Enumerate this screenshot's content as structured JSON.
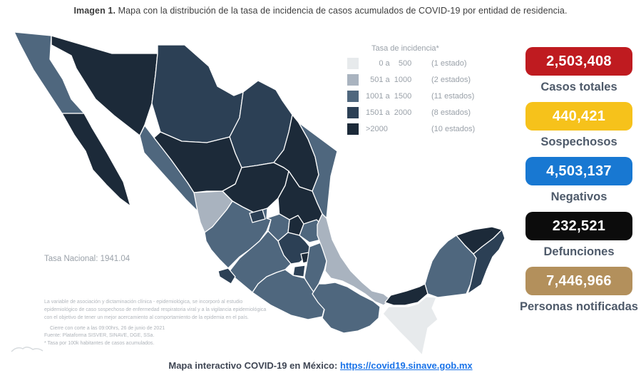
{
  "title": {
    "prefix": "Imagen 1.",
    "text": " Mapa con la distribución de la tasa de incidencia de casos acumulados de COVID-19 por entidad de residencia."
  },
  "legend": {
    "title": "Tasa de incidencia*",
    "items": [
      {
        "range": "      0 a    500",
        "count": "(1 estado)",
        "level": 1
      },
      {
        "range": "  501 a  1000",
        "count": "(2 estados)",
        "level": 2
      },
      {
        "range": "1001 a  1500",
        "count": "(11 estados)",
        "level": 3
      },
      {
        "range": "1501 a  2000",
        "count": "(8 estados)",
        "level": 4
      },
      {
        "range": ">2000",
        "count": "(10 estados)",
        "level": 5
      }
    ]
  },
  "palette": {
    "1": "#e7eaec",
    "2": "#a9b3bf",
    "3": "#4f677e",
    "4": "#2c4055",
    "5": "#1c2a39"
  },
  "map": {
    "tasa_nacional": "Tasa Nacional: 1941.04",
    "disclaimer": [
      "La variable de asociación y dictaminación clínica - epidemiológica, se incorporó al estudio",
      "epidemiológico de caso sospechoso de enfermedad respiratoria viral y a la vigilancia epidemiológica",
      "con el objetivo de tener un mejor acercamiento al comportamiento de la epidemia en el país."
    ],
    "source": [
      "Cierre con corte a las 09:00hrs, 26 de junio de 2021",
      "Fuente: Plataforma SISVER, SINAVE, DGE, SSa.",
      "* Tasa por 100k habitantes de casos acumulados."
    ],
    "states": [
      {
        "name": "Baja California",
        "level": 3
      },
      {
        "name": "Baja California Sur",
        "level": 5
      },
      {
        "name": "Sonora",
        "level": 5
      },
      {
        "name": "Chihuahua",
        "level": 4
      },
      {
        "name": "Coahuila",
        "level": 4
      },
      {
        "name": "Nuevo Leon",
        "level": 5
      },
      {
        "name": "Tamaulipas",
        "level": 3
      },
      {
        "name": "Sinaloa",
        "level": 3
      },
      {
        "name": "Durango",
        "level": 5
      },
      {
        "name": "Zacatecas",
        "level": 5
      },
      {
        "name": "San Luis Potosi",
        "level": 5
      },
      {
        "name": "Nayarit",
        "level": 2
      },
      {
        "name": "Jalisco",
        "level": 3
      },
      {
        "name": "Aguascalientes",
        "level": 4
      },
      {
        "name": "Guanajuato",
        "level": 3
      },
      {
        "name": "Queretaro",
        "level": 5
      },
      {
        "name": "Hidalgo",
        "level": 3
      },
      {
        "name": "Estado de Mexico",
        "level": 4
      },
      {
        "name": "Ciudad de Mexico",
        "level": 5
      },
      {
        "name": "Tlaxcala",
        "level": 4
      },
      {
        "name": "Morelos",
        "level": 4
      },
      {
        "name": "Puebla",
        "level": 3
      },
      {
        "name": "Michoacan",
        "level": 3
      },
      {
        "name": "Colima",
        "level": 4
      },
      {
        "name": "Guerrero",
        "level": 3
      },
      {
        "name": "Oaxaca",
        "level": 3
      },
      {
        "name": "Veracruz",
        "level": 2
      },
      {
        "name": "Tabasco",
        "level": 5
      },
      {
        "name": "Chiapas",
        "level": 1
      },
      {
        "name": "Campeche",
        "level": 3
      },
      {
        "name": "Yucatan",
        "level": 5
      },
      {
        "name": "Quintana Roo",
        "level": 4
      }
    ]
  },
  "stats": [
    {
      "value": "2,503,408",
      "label": "Casos totales",
      "color": "#bf1b20"
    },
    {
      "value": "440,421",
      "label": "Sospechosos",
      "color": "#f6c21b"
    },
    {
      "value": "4,503,137",
      "label": "Negativos",
      "color": "#1878d2"
    },
    {
      "value": "232,521",
      "label": "Defunciones",
      "color": "#0c0c0c"
    },
    {
      "value": "7,446,966",
      "label": "Personas notificadas",
      "color": "#b3905c"
    }
  ],
  "footer": {
    "text": "Mapa interactivo COVID-19 en México: ",
    "link": "https://covid19.sinave.gob.mx"
  }
}
